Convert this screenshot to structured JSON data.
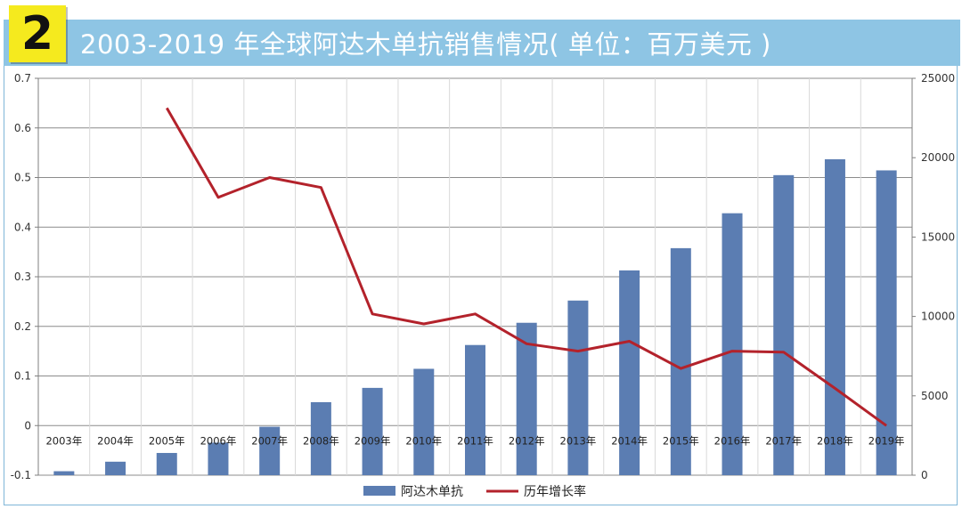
{
  "header": {
    "badge": "2",
    "title": "2003-2019 年全球阿达木单抗销售情况( 单位：百万美元 )"
  },
  "colors": {
    "header_bg": "#8ec5e4",
    "badge_bg": "#f5ea1e",
    "bar": "#5b7db2",
    "line": "#b3222b"
  },
  "chart_data": {
    "type": "bar+line",
    "categories": [
      "2003年",
      "2004年",
      "2005年",
      "2006年",
      "2007年",
      "2008年",
      "2009年",
      "2010年",
      "2011年",
      "2012年",
      "2013年",
      "2014年",
      "2015年",
      "2016年",
      "2017年",
      "2018年",
      "2019年"
    ],
    "series": [
      {
        "name": "阿达木单抗",
        "type": "bar",
        "axis": "right",
        "values": [
          250,
          850,
          1400,
          2050,
          3050,
          4600,
          5500,
          6700,
          8200,
          9600,
          11000,
          12900,
          14300,
          16500,
          18900,
          19900,
          19200
        ]
      },
      {
        "name": "历年增长率",
        "type": "line",
        "axis": "left",
        "values": [
          null,
          null,
          0.64,
          0.46,
          0.5,
          0.48,
          0.225,
          0.205,
          0.225,
          0.165,
          0.15,
          0.17,
          0.115,
          0.15,
          0.148,
          0.075,
          0.0
        ]
      }
    ],
    "left_axis": {
      "ylim": [
        -0.1,
        0.7
      ],
      "ticks": [
        "-0.1",
        "0",
        "0.1",
        "0.2",
        "0.3",
        "0.4",
        "0.5",
        "0.6",
        "0.7"
      ]
    },
    "right_axis": {
      "ylim": [
        0,
        25000
      ],
      "ticks": [
        "0",
        "5000",
        "10000",
        "15000",
        "20000",
        "25000"
      ]
    },
    "grid": true,
    "legend": "bottom-center"
  }
}
